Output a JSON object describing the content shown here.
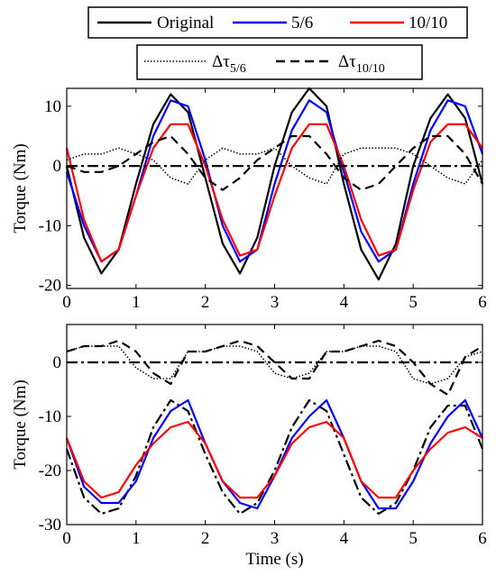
{
  "chart_data": [
    {
      "type": "line",
      "xlabel": "",
      "ylabel": "Torque (Nm)",
      "xlim": [
        0,
        6
      ],
      "ylim": [
        -20.5,
        13
      ],
      "xticks": [
        "0",
        "1",
        "2",
        "3",
        "4",
        "5",
        "6"
      ],
      "yticks": [
        "10",
        "0",
        "-10",
        "-20"
      ],
      "legend": {
        "placement": "top",
        "rows": [
          [
            {
              "label": "Original",
              "color": "#000000",
              "style": "solid"
            },
            {
              "label": "5/6",
              "color": "#0000ff",
              "style": "solid"
            },
            {
              "label": "10/10",
              "color": "#ff0000",
              "style": "solid"
            }
          ],
          [
            {
              "label": "Δτ",
              "sub": "5/6",
              "color": "#000000",
              "style": "dotted"
            },
            {
              "label": "Δτ",
              "sub": "10/10",
              "color": "#000000",
              "style": "dashed"
            }
          ]
        ]
      },
      "series": [
        {
          "name": "Original",
          "color": "#000000",
          "style": "solid",
          "x": [
            0,
            0.25,
            0.5,
            0.75,
            1.0,
            1.25,
            1.5,
            1.75,
            2.0,
            2.25,
            2.5,
            2.75,
            3.0,
            3.25,
            3.5,
            3.75,
            4.0,
            4.25,
            4.5,
            4.75,
            5.0,
            5.25,
            5.5,
            5.75,
            6.0
          ],
          "y": [
            0,
            -12,
            -18,
            -14,
            -3,
            7,
            12,
            9,
            -2,
            -13,
            -18,
            -12,
            0,
            9,
            13,
            10,
            -3,
            -14,
            -19,
            -13,
            0,
            8,
            12,
            8,
            -3
          ]
        },
        {
          "name": "5/6",
          "color": "#0000ff",
          "style": "solid",
          "x": [
            0,
            0.25,
            0.5,
            0.75,
            1.0,
            1.25,
            1.5,
            1.75,
            2.0,
            2.25,
            2.5,
            2.75,
            3.0,
            3.25,
            3.5,
            3.75,
            4.0,
            4.25,
            4.5,
            4.75,
            5.0,
            5.25,
            5.5,
            5.75,
            6.0
          ],
          "y": [
            -1,
            -10,
            -16,
            -14,
            -5,
            5,
            11,
            10,
            1,
            -10,
            -16,
            -14,
            -3,
            6,
            11,
            9,
            -1,
            -11,
            -16,
            -14,
            -3,
            6,
            11,
            10,
            2
          ]
        },
        {
          "name": "10/10",
          "color": "#ff0000",
          "style": "solid",
          "x": [
            0,
            0.25,
            0.5,
            0.75,
            1.0,
            1.25,
            1.5,
            1.75,
            2.0,
            2.25,
            2.5,
            2.75,
            3.0,
            3.25,
            3.5,
            3.75,
            4.0,
            4.25,
            4.5,
            4.75,
            5.0,
            5.25,
            5.5,
            5.75,
            6.0
          ],
          "y": [
            3,
            -9,
            -16,
            -14,
            -5,
            3,
            7,
            7,
            0,
            -9,
            -15,
            -14,
            -5,
            3,
            7,
            7,
            0,
            -9,
            -15,
            -14,
            -4,
            4,
            7,
            7,
            3
          ]
        },
        {
          "name": "Δτ_5/6",
          "color": "#000000",
          "style": "dotted",
          "x": [
            0,
            0.25,
            0.5,
            0.75,
            1.0,
            1.25,
            1.5,
            1.75,
            2.0,
            2.25,
            2.5,
            2.75,
            3.0,
            3.25,
            3.5,
            3.75,
            4.0,
            4.25,
            4.5,
            4.75,
            5.0,
            5.25,
            5.5,
            5.75,
            6.0
          ],
          "y": [
            1,
            2,
            2,
            3,
            2,
            1,
            -2,
            -3,
            1,
            3,
            2,
            2,
            3,
            0,
            -2,
            -3,
            2,
            3,
            3,
            3,
            2,
            0,
            -2,
            -3,
            1
          ]
        },
        {
          "name": "Δτ_10/10",
          "color": "#000000",
          "style": "dashed",
          "x": [
            0,
            0.25,
            0.5,
            0.75,
            1.0,
            1.25,
            1.5,
            1.75,
            2.0,
            2.25,
            2.5,
            2.75,
            3.0,
            3.25,
            3.5,
            3.75,
            4.0,
            4.25,
            4.5,
            4.75,
            5.0,
            5.25,
            5.5,
            5.75,
            6.0
          ],
          "y": [
            0,
            -1,
            -1,
            0,
            2,
            4,
            5,
            2,
            -2,
            -4,
            -2,
            1,
            3,
            5,
            5,
            2,
            -2,
            -4,
            -3,
            0,
            3,
            5,
            5,
            2,
            -3
          ]
        },
        {
          "name": "zero",
          "color": "#000000",
          "style": "dashdot",
          "x": [
            0,
            6
          ],
          "y": [
            0,
            0
          ]
        }
      ]
    },
    {
      "type": "line",
      "xlabel": "Time (s)",
      "ylabel": "Torque (Nm)",
      "xlim": [
        0,
        6
      ],
      "ylim": [
        -30,
        7
      ],
      "xticks": [
        "0",
        "1",
        "2",
        "3",
        "4",
        "5",
        "6"
      ],
      "yticks": [
        "0",
        "-10",
        "-20",
        "-30"
      ],
      "series": [
        {
          "name": "Original",
          "color": "#000000",
          "style": "dashdot",
          "x": [
            0,
            0.25,
            0.5,
            0.75,
            1.0,
            1.25,
            1.5,
            1.75,
            2.0,
            2.25,
            2.5,
            2.75,
            3.0,
            3.25,
            3.5,
            3.75,
            4.0,
            4.25,
            4.5,
            4.75,
            5.0,
            5.25,
            5.5,
            5.75,
            6.0
          ],
          "y": [
            -16,
            -25,
            -28,
            -27,
            -21,
            -12,
            -7,
            -9,
            -17,
            -24,
            -28,
            -26,
            -20,
            -12,
            -7,
            -9,
            -17,
            -25,
            -28,
            -26,
            -20,
            -12,
            -8,
            -8,
            -16
          ]
        },
        {
          "name": "5/6",
          "color": "#0000ff",
          "style": "solid",
          "x": [
            0,
            0.25,
            0.5,
            0.75,
            1.0,
            1.25,
            1.5,
            1.75,
            2.0,
            2.25,
            2.5,
            2.75,
            3.0,
            3.25,
            3.5,
            3.75,
            4.0,
            4.25,
            4.5,
            4.75,
            5.0,
            5.25,
            5.5,
            5.75,
            6.0
          ],
          "y": [
            -14,
            -23,
            -26,
            -26,
            -22,
            -14,
            -9,
            -7,
            -15,
            -22,
            -26,
            -27,
            -21,
            -14,
            -10,
            -7,
            -14,
            -22,
            -27,
            -27,
            -22,
            -15,
            -10,
            -7,
            -14
          ]
        },
        {
          "name": "10/10",
          "color": "#ff0000",
          "style": "solid",
          "x": [
            0,
            0.25,
            0.5,
            0.75,
            1.0,
            1.25,
            1.5,
            1.75,
            2.0,
            2.25,
            2.5,
            2.75,
            3.0,
            3.25,
            3.5,
            3.75,
            4.0,
            4.25,
            4.5,
            4.75,
            5.0,
            5.25,
            5.5,
            5.75,
            6.0
          ],
          "y": [
            -14,
            -22,
            -25,
            -24,
            -19,
            -15,
            -12,
            -11,
            -15,
            -22,
            -25,
            -25,
            -21,
            -15,
            -12,
            -11,
            -14,
            -22,
            -25,
            -25,
            -20,
            -16,
            -13,
            -12,
            -14
          ]
        },
        {
          "name": "Δτ_5/6",
          "color": "#000000",
          "style": "dotted",
          "x": [
            0,
            0.25,
            0.5,
            0.75,
            1.0,
            1.25,
            1.5,
            1.75,
            2.0,
            2.25,
            2.5,
            2.75,
            3.0,
            3.25,
            3.5,
            3.75,
            4.0,
            4.25,
            4.5,
            4.75,
            5.0,
            5.25,
            5.5,
            5.75,
            6.0
          ],
          "y": [
            2,
            3,
            3,
            3,
            -1,
            -3,
            -3,
            2,
            2,
            3,
            3,
            2,
            -2,
            -3,
            -2,
            2,
            2,
            3,
            3,
            2,
            -3,
            -4,
            -3,
            1,
            2
          ]
        },
        {
          "name": "Δτ_10/10",
          "color": "#000000",
          "style": "dashed",
          "x": [
            0,
            0.25,
            0.5,
            0.75,
            1.0,
            1.25,
            1.5,
            1.75,
            2.0,
            2.25,
            2.5,
            2.75,
            3.0,
            3.25,
            3.5,
            3.75,
            4.0,
            4.25,
            4.5,
            4.75,
            5.0,
            5.25,
            5.5,
            5.75,
            6.0
          ],
          "y": [
            2,
            3,
            3,
            4,
            2,
            -2,
            -4,
            2,
            2,
            3,
            4,
            3,
            0,
            -3,
            -3,
            2,
            2,
            3,
            4,
            3,
            0,
            -4,
            -6,
            1,
            3
          ]
        },
        {
          "name": "zero",
          "color": "#000000",
          "style": "dashdot",
          "x": [
            0,
            6
          ],
          "y": [
            0,
            0
          ]
        }
      ]
    }
  ]
}
